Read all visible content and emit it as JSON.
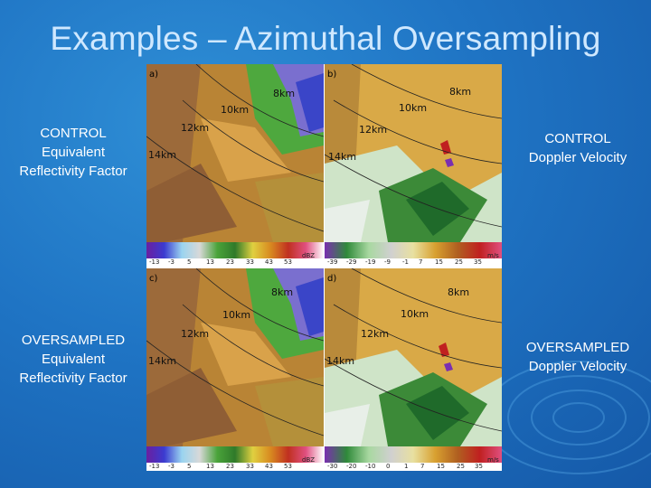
{
  "title": "Examples – Azimuthal Oversampling",
  "labels": {
    "control_refl": [
      "CONTROL",
      "Equivalent",
      "Reflectivity Factor"
    ],
    "control_vel": [
      "CONTROL",
      "Doppler Velocity"
    ],
    "over_refl": [
      "OVERSAMPLED",
      "Equivalent",
      "Reflectivity Factor"
    ],
    "over_vel": [
      "OVERSAMPLED",
      "Doppler Velocity"
    ]
  },
  "panels": {
    "a": {
      "letter": "a)",
      "r8": "8km",
      "r10": "10km",
      "r12": "12km",
      "r14": "14km",
      "unit": "dBZ",
      "ticks": [
        "-13",
        "-3",
        "5",
        "13",
        "23",
        "33",
        "43",
        "53"
      ]
    },
    "b": {
      "letter": "b)",
      "r8": "8km",
      "r10": "10km",
      "r12": "12km",
      "r14": "14km",
      "unit": "m/s",
      "ticks": [
        "-39",
        "-29",
        "-19",
        "-9",
        "-1",
        "7",
        "15",
        "25",
        "35"
      ]
    },
    "c": {
      "letter": "c)",
      "r8": "8km",
      "r10": "10km",
      "r12": "12km",
      "r14": "14km",
      "unit": "dBZ",
      "ticks": [
        "-13",
        "-3",
        "5",
        "13",
        "23",
        "33",
        "43",
        "53"
      ]
    },
    "d": {
      "letter": "d)",
      "r8": "8km",
      "r10": "10km",
      "r12": "12km",
      "r14": "14km",
      "unit": "m/s",
      "ticks": [
        "-30",
        "-20",
        "-10",
        "0",
        "1",
        "7",
        "15",
        "25",
        "35"
      ]
    }
  },
  "colors": {
    "background": "#1f74c4",
    "title": "#cfe8ff",
    "refl_bg": "#c08a3a",
    "vel_bg": "#e0b24a"
  }
}
